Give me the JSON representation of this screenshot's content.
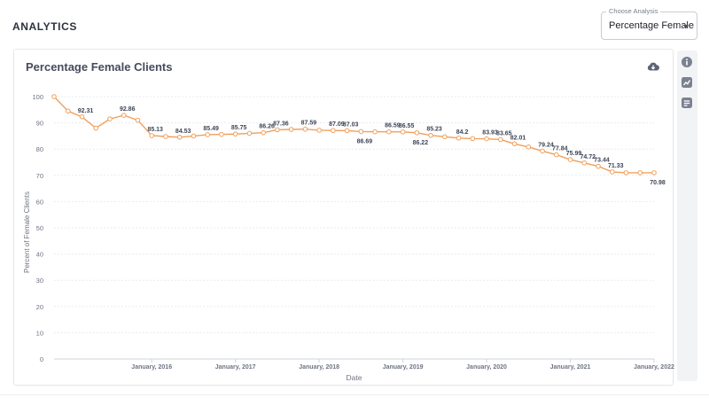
{
  "header": {
    "title": "ANALYTICS"
  },
  "analysis_select": {
    "legend": "Choose Analysis",
    "value": "Percentage Female"
  },
  "icons": {
    "download": "cloud-download-icon",
    "info": "info-icon",
    "chart": "chart-icon",
    "notes": "notes-icon"
  },
  "colors": {
    "series": "#f0a05c",
    "text": "#454b5c",
    "grid": "#e9ebef"
  },
  "chart_data": {
    "type": "line",
    "title": "Percentage Female Clients",
    "xlabel": "Date",
    "ylabel": "Percent of Female Clients",
    "ylim": [
      0,
      100
    ],
    "yticks": [
      0,
      10,
      20,
      30,
      40,
      50,
      60,
      70,
      80,
      90,
      100
    ],
    "xlim": [
      "2014-11",
      "2022-01"
    ],
    "xticks": [
      {
        "date": "2016-01",
        "label": "January, 2016"
      },
      {
        "date": "2017-01",
        "label": "January, 2017"
      },
      {
        "date": "2018-01",
        "label": "January, 2018"
      },
      {
        "date": "2019-01",
        "label": "January, 2019"
      },
      {
        "date": "2020-01",
        "label": "January, 2020"
      },
      {
        "date": "2021-01",
        "label": "January, 2021"
      },
      {
        "date": "2022-01",
        "label": "January, 2022"
      }
    ],
    "grid": true,
    "series": [
      {
        "x": [
          "2014-11",
          "2015-01",
          "2015-03",
          "2015-05",
          "2015-07",
          "2015-09",
          "2015-11",
          "2016-01",
          "2016-03",
          "2016-05",
          "2016-07",
          "2016-09",
          "2016-11",
          "2017-01",
          "2017-03",
          "2017-05",
          "2017-07",
          "2017-09",
          "2017-11",
          "2018-01",
          "2018-03",
          "2018-05",
          "2018-07",
          "2018-09",
          "2018-11",
          "2019-01",
          "2019-03",
          "2019-05",
          "2019-07",
          "2019-09",
          "2019-11",
          "2020-01",
          "2020-03",
          "2020-05",
          "2020-07",
          "2020-09",
          "2020-11",
          "2021-01",
          "2021-03",
          "2021-05",
          "2021-07",
          "2021-09",
          "2021-11",
          "2022-01"
        ],
        "y": [
          100,
          94.5,
          92.31,
          88.0,
          91.5,
          92.86,
          91.0,
          85.13,
          84.8,
          84.53,
          85.0,
          85.49,
          85.6,
          85.75,
          86.0,
          86.26,
          87.36,
          87.5,
          87.59,
          87.2,
          87.09,
          87.03,
          86.69,
          86.6,
          86.59,
          86.55,
          86.22,
          85.23,
          84.7,
          84.2,
          84.0,
          83.93,
          83.65,
          82.01,
          80.8,
          79.24,
          77.84,
          75.99,
          74.72,
          73.44,
          71.33,
          70.98,
          70.98,
          70.98
        ],
        "labels": [
          {
            "i": 2,
            "text": "92.31"
          },
          {
            "i": 5,
            "text": "92.86"
          },
          {
            "i": 7,
            "text": "85.13"
          },
          {
            "i": 9,
            "text": "84.53"
          },
          {
            "i": 11,
            "text": "85.49"
          },
          {
            "i": 13,
            "text": "85.75"
          },
          {
            "i": 15,
            "text": "86.26"
          },
          {
            "i": 16,
            "text": "87.36"
          },
          {
            "i": 18,
            "text": "87.59"
          },
          {
            "i": 20,
            "text": "87.09"
          },
          {
            "i": 21,
            "text": "87.03"
          },
          {
            "i": 22,
            "text": "86.69"
          },
          {
            "i": 24,
            "text": "86.59"
          },
          {
            "i": 25,
            "text": "86.55"
          },
          {
            "i": 26,
            "text": "86.22"
          },
          {
            "i": 27,
            "text": "85.23"
          },
          {
            "i": 29,
            "text": "84.2"
          },
          {
            "i": 31,
            "text": "83.93"
          },
          {
            "i": 32,
            "text": "83.65"
          },
          {
            "i": 33,
            "text": "82.01"
          },
          {
            "i": 35,
            "text": "79.24"
          },
          {
            "i": 36,
            "text": "77.84"
          },
          {
            "i": 37,
            "text": "75.99"
          },
          {
            "i": 38,
            "text": "74.72"
          },
          {
            "i": 39,
            "text": "73.44"
          },
          {
            "i": 40,
            "text": "71.33"
          },
          {
            "i": 43,
            "text": "70.98"
          }
        ]
      }
    ]
  }
}
